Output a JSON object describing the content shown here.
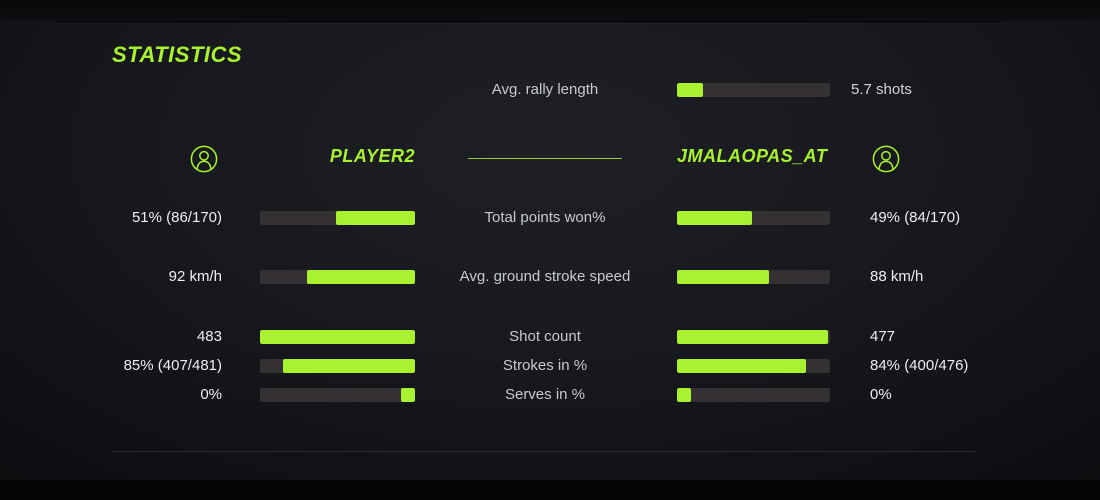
{
  "title": "STATISTICS",
  "colors": {
    "accent": "#a8f22f",
    "bar_track": "#353132",
    "center_label_text": "#c7cacc",
    "value_text": "#eceef0",
    "background": "#141519"
  },
  "icons": {
    "player_avatar": "person-circle-icon"
  },
  "header_stat": {
    "label": "Avg. rally length",
    "value": "5.7 shots",
    "fill_pct": 17
  },
  "players": {
    "left": {
      "name": "PLAYER2"
    },
    "right": {
      "name": "JMALAOPAS_AT"
    }
  },
  "stats": [
    {
      "label": "Total points won%",
      "left": {
        "value": "51% (86/170)",
        "fill_pct": 51
      },
      "right": {
        "value": "49% (84/170)",
        "fill_pct": 49
      }
    },
    {
      "label": "Avg. ground stroke speed",
      "left": {
        "value": "92 km/h",
        "fill_pct": 70
      },
      "right": {
        "value": "88 km/h",
        "fill_pct": 60
      }
    },
    {
      "label": "Shot count",
      "left": {
        "value": "483",
        "fill_pct": 100
      },
      "right": {
        "value": "477",
        "fill_pct": 99
      }
    },
    {
      "label": "Strokes in %",
      "left": {
        "value": "85% (407/481)",
        "fill_pct": 85
      },
      "right": {
        "value": "84% (400/476)",
        "fill_pct": 84
      }
    },
    {
      "label": "Serves in %",
      "left": {
        "value": "0%",
        "fill_pct": 9
      },
      "right": {
        "value": "0%",
        "fill_pct": 9
      }
    }
  ]
}
